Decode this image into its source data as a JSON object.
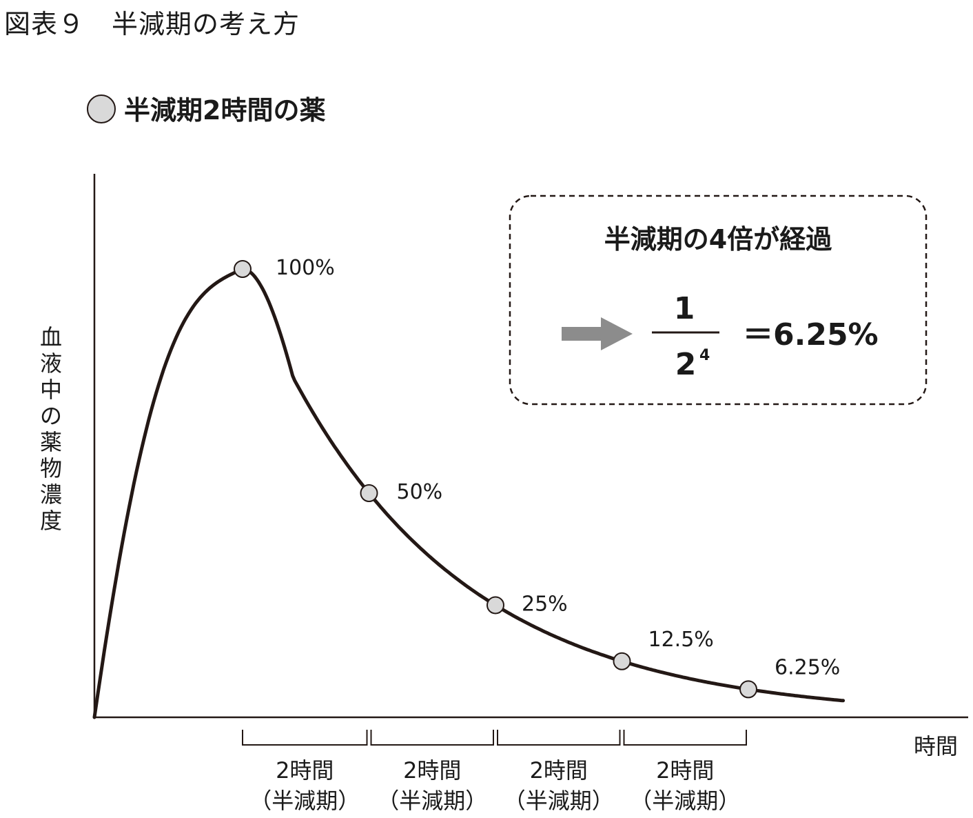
{
  "caption": "図表９　半減期の考え方",
  "subtitle": "半減期2時間の薬",
  "colors": {
    "curve": "#231815",
    "marker_fill": "#d9d9d9",
    "marker_stroke": "#231815",
    "arrow": "#8c8c8c"
  },
  "info_box": {
    "title": "半減期の4倍が経過",
    "numerator": "1",
    "denominator_base": "2",
    "denominator_exp": "4",
    "result": "＝6.25%",
    "arrow_icon": "right-arrow-icon"
  },
  "chart_data": {
    "type": "line",
    "title": "半減期2時間の薬",
    "xlabel": "時間",
    "ylabel": "血液中の薬物濃度",
    "x_unit": "時間",
    "xlim": [
      -4,
      9.5
    ],
    "ylim": [
      0,
      110
    ],
    "grid": false,
    "legend": "none",
    "points": [
      {
        "x": 0,
        "y": 100,
        "label": "100%"
      },
      {
        "x": 2,
        "y": 50,
        "label": "50%"
      },
      {
        "x": 4,
        "y": 25,
        "label": "25%"
      },
      {
        "x": 6,
        "y": 12.5,
        "label": "12.5%"
      },
      {
        "x": 8,
        "y": 6.25,
        "label": "6.25%"
      }
    ],
    "intervals": [
      {
        "from": 0,
        "to": 2,
        "label": "2時間",
        "sublabel": "（半減期）"
      },
      {
        "from": 2,
        "to": 4,
        "label": "2時間",
        "sublabel": "（半減期）"
      },
      {
        "from": 4,
        "to": 6,
        "label": "2時間",
        "sublabel": "（半減期）"
      },
      {
        "from": 6,
        "to": 8,
        "label": "2時間",
        "sublabel": "（半減期）"
      }
    ]
  }
}
